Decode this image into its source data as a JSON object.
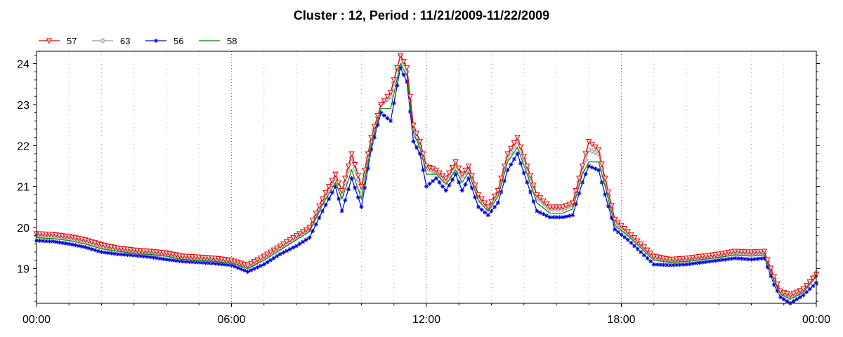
{
  "chart_data": {
    "type": "line",
    "title": "Cluster : 12, Period : 11/21/2009-11/22/2009",
    "x_unit": "hours",
    "x_ticks": [
      {
        "value": 0,
        "label": "00:00"
      },
      {
        "value": 6,
        "label": "06:00"
      },
      {
        "value": 12,
        "label": "12:00"
      },
      {
        "value": 18,
        "label": "18:00"
      },
      {
        "value": 24,
        "label": "00:00"
      }
    ],
    "xlim": [
      0,
      24
    ],
    "ylim": [
      18.15,
      24.3
    ],
    "y_ticks": [
      19,
      20,
      21,
      22,
      23,
      24
    ],
    "grid": "vertical dotted lines only",
    "legend_position": "top-left",
    "series": [
      {
        "name": "57",
        "color": "#e00000",
        "marker": "triangle-down",
        "points": [
          [
            0,
            19.85
          ],
          [
            0.5,
            19.83
          ],
          [
            1,
            19.78
          ],
          [
            1.5,
            19.7
          ],
          [
            2,
            19.58
          ],
          [
            2.5,
            19.5
          ],
          [
            3,
            19.45
          ],
          [
            3.5,
            19.42
          ],
          [
            4,
            19.38
          ],
          [
            4.5,
            19.3
          ],
          [
            5,
            19.28
          ],
          [
            5.5,
            19.25
          ],
          [
            6,
            19.2
          ],
          [
            6.5,
            19.08
          ],
          [
            7,
            19.3
          ],
          [
            7.5,
            19.55
          ],
          [
            8,
            19.8
          ],
          [
            8.4,
            20.0
          ],
          [
            8.8,
            20.7
          ],
          [
            9.2,
            21.3
          ],
          [
            9.4,
            20.9
          ],
          [
            9.7,
            21.8
          ],
          [
            10,
            21.0
          ],
          [
            10.3,
            22.2
          ],
          [
            10.6,
            23.0
          ],
          [
            10.9,
            23.3
          ],
          [
            11.2,
            24.2
          ],
          [
            11.4,
            23.9
          ],
          [
            11.6,
            22.5
          ],
          [
            11.8,
            22.1
          ],
          [
            12,
            21.5
          ],
          [
            12.3,
            21.4
          ],
          [
            12.6,
            21.2
          ],
          [
            12.9,
            21.6
          ],
          [
            13.1,
            21.3
          ],
          [
            13.3,
            21.5
          ],
          [
            13.6,
            20.8
          ],
          [
            13.9,
            20.5
          ],
          [
            14.2,
            20.9
          ],
          [
            14.5,
            21.8
          ],
          [
            14.8,
            22.2
          ],
          [
            15.1,
            21.5
          ],
          [
            15.4,
            20.8
          ],
          [
            15.8,
            20.5
          ],
          [
            16.2,
            20.5
          ],
          [
            16.5,
            20.6
          ],
          [
            16.8,
            21.5
          ],
          [
            17.0,
            22.1
          ],
          [
            17.3,
            21.9
          ],
          [
            17.5,
            21.2
          ],
          [
            17.8,
            20.2
          ],
          [
            18.2,
            19.9
          ],
          [
            18.6,
            19.6
          ],
          [
            19,
            19.3
          ],
          [
            19.5,
            19.22
          ],
          [
            20,
            19.25
          ],
          [
            20.5,
            19.3
          ],
          [
            21,
            19.35
          ],
          [
            21.5,
            19.42
          ],
          [
            22,
            19.4
          ],
          [
            22.4,
            19.42
          ],
          [
            22.7,
            18.8
          ],
          [
            22.9,
            18.45
          ],
          [
            23.2,
            18.35
          ],
          [
            23.6,
            18.5
          ],
          [
            24,
            18.85
          ]
        ]
      },
      {
        "name": "63",
        "color": "#999999",
        "marker": "diamond",
        "points": [
          [
            0,
            19.8
          ],
          [
            0.5,
            19.78
          ],
          [
            1,
            19.73
          ],
          [
            1.5,
            19.65
          ],
          [
            2,
            19.53
          ],
          [
            2.5,
            19.45
          ],
          [
            3,
            19.4
          ],
          [
            3.5,
            19.38
          ],
          [
            4,
            19.33
          ],
          [
            4.5,
            19.25
          ],
          [
            5,
            19.23
          ],
          [
            5.5,
            19.2
          ],
          [
            6,
            19.16
          ],
          [
            6.5,
            19.03
          ],
          [
            7,
            19.25
          ],
          [
            7.5,
            19.5
          ],
          [
            8,
            19.75
          ],
          [
            8.4,
            19.95
          ],
          [
            8.8,
            20.6
          ],
          [
            9.2,
            21.2
          ],
          [
            9.4,
            20.8
          ],
          [
            9.7,
            21.7
          ],
          [
            10,
            20.9
          ],
          [
            10.3,
            22.1
          ],
          [
            10.6,
            23.0
          ],
          [
            10.9,
            23.2
          ],
          [
            11.2,
            24.2
          ],
          [
            11.4,
            23.8
          ],
          [
            11.6,
            22.4
          ],
          [
            11.8,
            22.0
          ],
          [
            12,
            21.45
          ],
          [
            12.3,
            21.35
          ],
          [
            12.6,
            21.15
          ],
          [
            12.9,
            21.5
          ],
          [
            13.1,
            21.25
          ],
          [
            13.3,
            21.45
          ],
          [
            13.6,
            20.75
          ],
          [
            13.9,
            20.45
          ],
          [
            14.2,
            20.85
          ],
          [
            14.5,
            21.7
          ],
          [
            14.8,
            22.1
          ],
          [
            15.1,
            21.45
          ],
          [
            15.4,
            20.75
          ],
          [
            15.8,
            20.45
          ],
          [
            16.2,
            20.45
          ],
          [
            16.5,
            20.55
          ],
          [
            16.8,
            21.4
          ],
          [
            17.0,
            21.9
          ],
          [
            17.3,
            21.8
          ],
          [
            17.5,
            21.1
          ],
          [
            17.8,
            20.15
          ],
          [
            18.2,
            19.85
          ],
          [
            18.6,
            19.55
          ],
          [
            19,
            19.25
          ],
          [
            19.5,
            19.18
          ],
          [
            20,
            19.2
          ],
          [
            20.5,
            19.25
          ],
          [
            21,
            19.3
          ],
          [
            21.5,
            19.38
          ],
          [
            22,
            19.36
          ],
          [
            22.4,
            19.38
          ],
          [
            22.7,
            18.75
          ],
          [
            22.9,
            18.4
          ],
          [
            23.2,
            18.3
          ],
          [
            23.6,
            18.45
          ],
          [
            24,
            18.9
          ]
        ]
      },
      {
        "name": "56",
        "color": "#0000dd",
        "marker": "asterisk",
        "points": [
          [
            0,
            19.68
          ],
          [
            0.5,
            19.66
          ],
          [
            1,
            19.6
          ],
          [
            1.5,
            19.52
          ],
          [
            2,
            19.4
          ],
          [
            2.5,
            19.35
          ],
          [
            3,
            19.32
          ],
          [
            3.5,
            19.28
          ],
          [
            4,
            19.22
          ],
          [
            4.5,
            19.17
          ],
          [
            5,
            19.15
          ],
          [
            5.5,
            19.12
          ],
          [
            6,
            19.08
          ],
          [
            6.5,
            18.92
          ],
          [
            7,
            19.1
          ],
          [
            7.5,
            19.35
          ],
          [
            8,
            19.55
          ],
          [
            8.4,
            19.75
          ],
          [
            8.8,
            20.4
          ],
          [
            9.2,
            21.0
          ],
          [
            9.4,
            20.4
          ],
          [
            9.7,
            21.2
          ],
          [
            10,
            20.5
          ],
          [
            10.3,
            21.9
          ],
          [
            10.6,
            22.8
          ],
          [
            10.9,
            22.6
          ],
          [
            11.2,
            23.9
          ],
          [
            11.4,
            23.55
          ],
          [
            11.6,
            22.1
          ],
          [
            11.8,
            21.8
          ],
          [
            12,
            21.0
          ],
          [
            12.3,
            21.2
          ],
          [
            12.6,
            20.9
          ],
          [
            12.9,
            21.3
          ],
          [
            13.1,
            20.9
          ],
          [
            13.3,
            21.2
          ],
          [
            13.6,
            20.5
          ],
          [
            13.9,
            20.3
          ],
          [
            14.2,
            20.6
          ],
          [
            14.5,
            21.4
          ],
          [
            14.8,
            21.8
          ],
          [
            15.1,
            21.1
          ],
          [
            15.4,
            20.4
          ],
          [
            15.8,
            20.25
          ],
          [
            16.2,
            20.25
          ],
          [
            16.5,
            20.3
          ],
          [
            16.8,
            21.1
          ],
          [
            17.0,
            21.5
          ],
          [
            17.3,
            21.4
          ],
          [
            17.5,
            20.8
          ],
          [
            17.8,
            19.95
          ],
          [
            18.2,
            19.7
          ],
          [
            18.6,
            19.4
          ],
          [
            19,
            19.1
          ],
          [
            19.5,
            19.08
          ],
          [
            20,
            19.1
          ],
          [
            20.5,
            19.15
          ],
          [
            21,
            19.2
          ],
          [
            21.5,
            19.25
          ],
          [
            22,
            19.22
          ],
          [
            22.4,
            19.25
          ],
          [
            22.7,
            18.6
          ],
          [
            22.9,
            18.3
          ],
          [
            23.2,
            18.15
          ],
          [
            23.6,
            18.35
          ],
          [
            24,
            18.65
          ]
        ]
      },
      {
        "name": "58",
        "color": "#008800",
        "marker": "none",
        "points": [
          [
            0,
            19.75
          ],
          [
            0.5,
            19.73
          ],
          [
            1,
            19.68
          ],
          [
            1.5,
            19.6
          ],
          [
            2,
            19.48
          ],
          [
            2.5,
            19.42
          ],
          [
            3,
            19.37
          ],
          [
            3.5,
            19.34
          ],
          [
            4,
            19.3
          ],
          [
            4.5,
            19.22
          ],
          [
            5,
            19.2
          ],
          [
            5.5,
            19.17
          ],
          [
            6,
            19.13
          ],
          [
            6.5,
            19.0
          ],
          [
            7,
            19.2
          ],
          [
            7.5,
            19.45
          ],
          [
            8,
            19.7
          ],
          [
            8.4,
            19.9
          ],
          [
            8.8,
            20.55
          ],
          [
            9.2,
            21.1
          ],
          [
            9.4,
            20.7
          ],
          [
            9.7,
            21.4
          ],
          [
            10,
            20.7
          ],
          [
            10.3,
            22.0
          ],
          [
            10.6,
            22.9
          ],
          [
            10.9,
            22.9
          ],
          [
            11.2,
            24.0
          ],
          [
            11.4,
            23.7
          ],
          [
            11.6,
            22.3
          ],
          [
            11.8,
            21.95
          ],
          [
            12,
            21.3
          ],
          [
            12.3,
            21.3
          ],
          [
            12.6,
            21.05
          ],
          [
            12.9,
            21.4
          ],
          [
            13.1,
            21.1
          ],
          [
            13.3,
            21.35
          ],
          [
            13.6,
            20.65
          ],
          [
            13.9,
            20.4
          ],
          [
            14.2,
            20.75
          ],
          [
            14.5,
            21.6
          ],
          [
            14.8,
            21.95
          ],
          [
            15.1,
            21.3
          ],
          [
            15.4,
            20.6
          ],
          [
            15.8,
            20.35
          ],
          [
            16.2,
            20.35
          ],
          [
            16.5,
            20.45
          ],
          [
            16.8,
            21.3
          ],
          [
            17.0,
            21.6
          ],
          [
            17.3,
            21.6
          ],
          [
            17.5,
            21.0
          ],
          [
            17.8,
            20.05
          ],
          [
            18.2,
            19.8
          ],
          [
            18.6,
            19.5
          ],
          [
            19,
            19.2
          ],
          [
            19.5,
            19.15
          ],
          [
            20,
            19.17
          ],
          [
            20.5,
            19.22
          ],
          [
            21,
            19.27
          ],
          [
            21.5,
            19.33
          ],
          [
            22,
            19.3
          ],
          [
            22.4,
            19.33
          ],
          [
            22.7,
            18.7
          ],
          [
            22.9,
            18.38
          ],
          [
            23.2,
            18.25
          ],
          [
            23.6,
            18.42
          ],
          [
            24,
            18.8
          ]
        ]
      }
    ]
  }
}
